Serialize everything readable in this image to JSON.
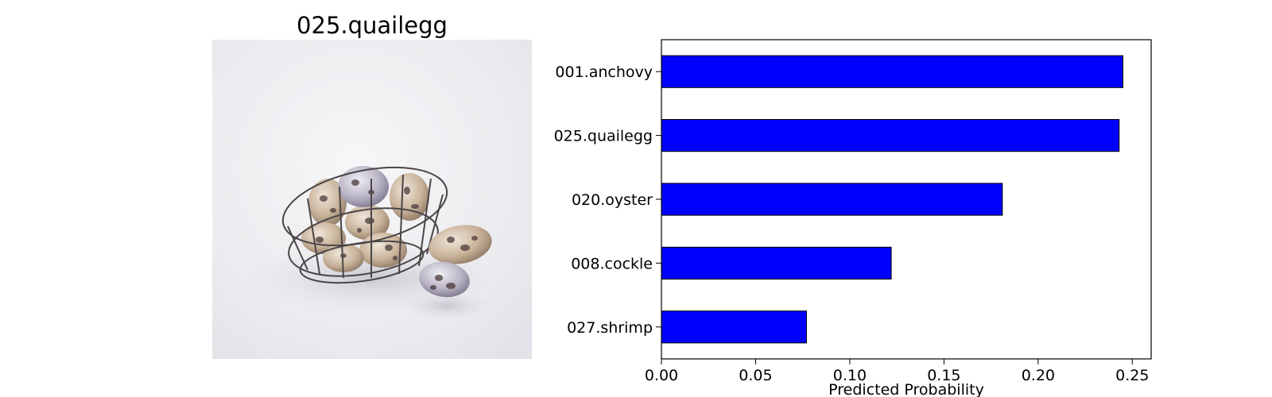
{
  "image_title": "025.quailegg",
  "photo": {
    "subject": "quail eggs in a wire basket"
  },
  "colors": {
    "bar": "#0000ff",
    "bar_edge": "#000000",
    "frame": "#000000"
  },
  "chart_data": {
    "type": "bar",
    "orientation": "horizontal",
    "categories": [
      "001.anchovy",
      "025.quailegg",
      "020.oyster",
      "008.cockle",
      "027.shrimp"
    ],
    "values": [
      0.245,
      0.243,
      0.181,
      0.122,
      0.077
    ],
    "xlabel": "Predicted Probability",
    "ylabel": "",
    "xlim": [
      0,
      0.26
    ],
    "xticks": [
      0.0,
      0.05,
      0.1,
      0.15,
      0.2,
      0.25
    ],
    "xtick_labels": [
      "0.00",
      "0.05",
      "0.10",
      "0.15",
      "0.20",
      "0.25"
    ],
    "grid": false,
    "legend": "none"
  }
}
